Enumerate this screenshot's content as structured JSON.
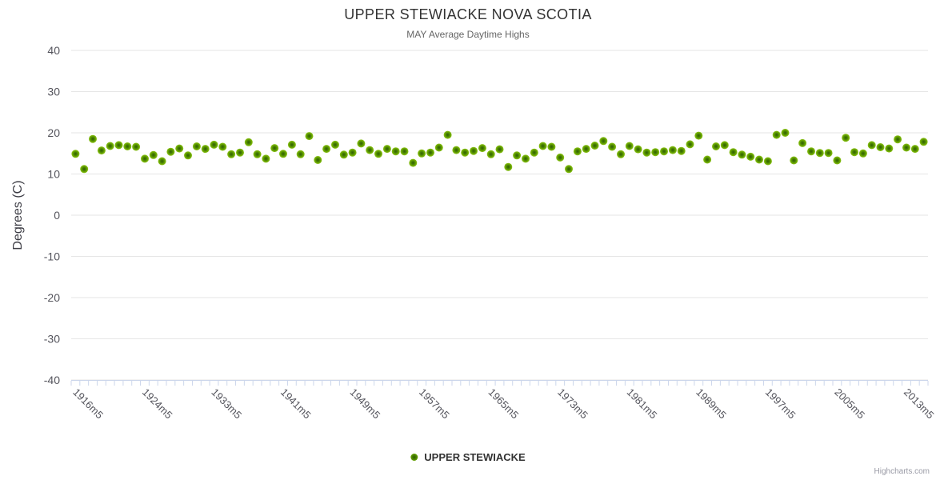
{
  "chart": {
    "title": "UPPER STEWIACKE NOVA SCOTIA",
    "subtitle": "MAY Average Daytime Highs",
    "y_axis_title": "Degrees (C)",
    "credit": "Highcharts.com"
  },
  "legend": {
    "label": "UPPER STEWIACKE"
  },
  "colors": {
    "grid": "#e6e6e6",
    "axis_line": "#ccd6eb",
    "tick": "#ccd6eb",
    "axis_text": "#54545c",
    "marker_core": "#2f5c01",
    "marker_mid": "#4c8702",
    "marker_edge": "#8cc41c",
    "series_green": "#77b300"
  },
  "chart_data": {
    "type": "scatter",
    "title": "UPPER STEWIACKE NOVA SCOTIA",
    "subtitle": "MAY Average Daytime Highs",
    "xlabel": "",
    "ylabel": "Degrees (C)",
    "ylim": [
      -40,
      40
    ],
    "yticks": [
      40,
      30,
      20,
      10,
      0,
      -10,
      -20,
      -30,
      -40
    ],
    "grid": true,
    "legend_position": "bottom",
    "xtick_labels_shown": [
      "1916m5",
      "1924m5",
      "1933m5",
      "1941m5",
      "1949m5",
      "1957m5",
      "1965m5",
      "1973m5",
      "1981m5",
      "1989m5",
      "1997m5",
      "2005m5",
      "2013m5"
    ],
    "categories": [
      "1916m5",
      "1917m5",
      "1918m5",
      "1919m5",
      "1920m5",
      "1921m5",
      "1922m5",
      "1923m5",
      "1924m5",
      "1925m5",
      "1926m5",
      "1927m5",
      "1929m5",
      "1930m5",
      "1931m5",
      "1932m5",
      "1933m5",
      "1934m5",
      "1935m5",
      "1936m5",
      "1937m5",
      "1938m5",
      "1939m5",
      "1940m5",
      "1941m5",
      "1942m5",
      "1943m5",
      "1944m5",
      "1945m5",
      "1946m5",
      "1947m5",
      "1948m5",
      "1949m5",
      "1950m5",
      "1951m5",
      "1952m5",
      "1953m5",
      "1954m5",
      "1955m5",
      "1956m5",
      "1957m5",
      "1958m5",
      "1959m5",
      "1960m5",
      "1961m5",
      "1962m5",
      "1963m5",
      "1964m5",
      "1965m5",
      "1966m5",
      "1967m5",
      "1968m5",
      "1969m5",
      "1970m5",
      "1971m5",
      "1972m5",
      "1973m5",
      "1974m5",
      "1975m5",
      "1976m5",
      "1977m5",
      "1978m5",
      "1979m5",
      "1980m5",
      "1981m5",
      "1982m5",
      "1983m5",
      "1984m5",
      "1985m5",
      "1986m5",
      "1987m5",
      "1988m5",
      "1989m5",
      "1990m5",
      "1991m5",
      "1992m5",
      "1993m5",
      "1994m5",
      "1995m5",
      "1996m5",
      "1997m5",
      "1998m5",
      "1999m5",
      "2000m5",
      "2001m5",
      "2002m5",
      "2003m5",
      "2004m5",
      "2005m5",
      "2006m5",
      "2007m5",
      "2008m5",
      "2009m5",
      "2010m5",
      "2011m5",
      "2012m5",
      "2013m5",
      "2014m5",
      "2015m5"
    ],
    "series": [
      {
        "name": "UPPER STEWIACKE",
        "color": "#77b300",
        "values": [
          14.9,
          11.2,
          18.5,
          15.7,
          16.8,
          17.0,
          16.7,
          16.6,
          13.7,
          14.6,
          13.1,
          15.4,
          16.2,
          14.5,
          16.7,
          16.1,
          17.1,
          16.6,
          14.8,
          15.2,
          17.7,
          14.8,
          13.7,
          16.3,
          14.9,
          17.1,
          14.8,
          19.2,
          13.4,
          16.1,
          17.1,
          14.7,
          15.2,
          17.4,
          15.8,
          14.9,
          16.1,
          15.5,
          15.5,
          12.7,
          15.0,
          15.2,
          16.4,
          19.5,
          15.8,
          15.2,
          15.6,
          16.3,
          14.8,
          16.0,
          11.7,
          14.5,
          13.7,
          15.2,
          16.8,
          16.6,
          14.0,
          11.2,
          15.5,
          16.1,
          16.9,
          18.0,
          16.6,
          14.8,
          16.8,
          16.0,
          15.2,
          15.3,
          15.5,
          15.8,
          15.6,
          17.2,
          19.3,
          13.5,
          16.7,
          17.0,
          15.3,
          14.7,
          14.2,
          13.5,
          13.1,
          19.5,
          20.0,
          13.3,
          17.5,
          15.5,
          15.1,
          15.1,
          13.3,
          18.8,
          15.3,
          15.0,
          17.0,
          16.5,
          16.2,
          18.4,
          16.4,
          16.1,
          17.8
        ]
      }
    ]
  }
}
